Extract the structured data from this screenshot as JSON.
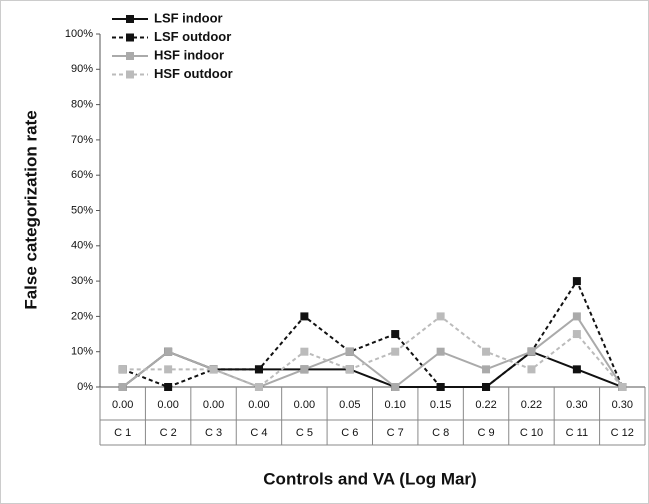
{
  "chart_data": {
    "type": "line",
    "y_label": "False categorization rate",
    "x_label": "Controls and VA (Log Mar)",
    "categories": [
      "C 1",
      "C 2",
      "C 3",
      "C 4",
      "C 5",
      "C 6",
      "C 7",
      "C 8",
      "C 9",
      "C 10",
      "C 11",
      "C 12"
    ],
    "va": [
      "0.00",
      "0.00",
      "0.00",
      "0.00",
      "0.00",
      "0.05",
      "0.10",
      "0.15",
      "0.22",
      "0.22",
      "0.30",
      "0.30"
    ],
    "ylim": [
      0,
      100
    ],
    "yticks": [
      {
        "value": 0,
        "label": "0%"
      },
      {
        "value": 10,
        "label": "10%"
      },
      {
        "value": 20,
        "label": "20%"
      },
      {
        "value": 30,
        "label": "30%"
      },
      {
        "value": 40,
        "label": "40%"
      },
      {
        "value": 50,
        "label": "50%"
      },
      {
        "value": 60,
        "label": "60%"
      },
      {
        "value": 70,
        "label": "70%"
      },
      {
        "value": 80,
        "label": "80%"
      },
      {
        "value": 90,
        "label": "90%"
      },
      {
        "value": 100,
        "label": "100%"
      }
    ],
    "legend": "top-left",
    "grid": false,
    "series": [
      {
        "name": "LSF indoor",
        "color": "#111111",
        "style": "solid",
        "values": [
          0,
          10,
          5,
          5,
          5,
          5,
          0,
          0,
          0,
          10,
          5,
          0
        ]
      },
      {
        "name": "LSF outdoor",
        "color": "#111111",
        "style": "dotted",
        "values": [
          5,
          0,
          5,
          5,
          20,
          10,
          15,
          0,
          0,
          10,
          30,
          0
        ]
      },
      {
        "name": "HSF indoor",
        "color": "#aaaaaa",
        "style": "solid",
        "values": [
          0,
          10,
          5,
          0,
          5,
          10,
          0,
          10,
          5,
          10,
          20,
          0
        ]
      },
      {
        "name": "HSF outdoor",
        "color": "#bbbbbb",
        "style": "dotted",
        "values": [
          5,
          5,
          5,
          0,
          10,
          5,
          10,
          20,
          10,
          5,
          15,
          0
        ]
      }
    ]
  }
}
